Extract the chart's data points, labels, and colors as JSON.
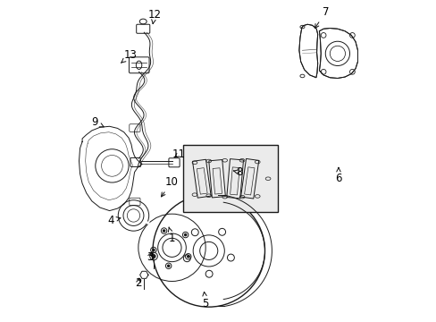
{
  "bg_color": "#ffffff",
  "line_color": "#1a1a1a",
  "label_color": "#000000",
  "figsize": [
    4.89,
    3.6
  ],
  "dpi": 100,
  "labels": {
    "1": [
      0.355,
      0.74,
      0.345,
      0.705
    ],
    "2": [
      0.25,
      0.88,
      0.255,
      0.855
    ],
    "3": [
      0.285,
      0.8,
      0.295,
      0.775
    ],
    "4": [
      0.165,
      0.685,
      0.205,
      0.675
    ],
    "5": [
      0.46,
      0.945,
      0.455,
      0.905
    ],
    "6": [
      0.875,
      0.555,
      0.875,
      0.51
    ],
    "7": [
      0.835,
      0.035,
      0.795,
      0.095
    ],
    "8": [
      0.565,
      0.535,
      0.545,
      0.53
    ],
    "9": [
      0.115,
      0.38,
      0.145,
      0.395
    ],
    "10": [
      0.355,
      0.565,
      0.315,
      0.62
    ],
    "11": [
      0.375,
      0.48,
      0.355,
      0.495
    ],
    "12": [
      0.3,
      0.045,
      0.295,
      0.075
    ],
    "13": [
      0.225,
      0.17,
      0.195,
      0.195
    ]
  }
}
